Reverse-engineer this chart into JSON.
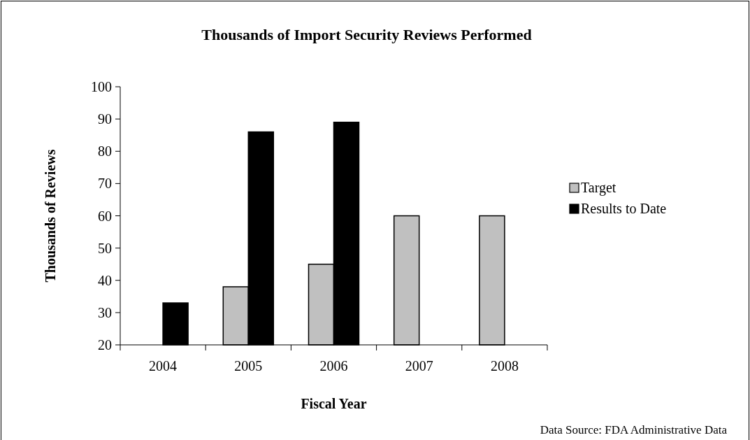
{
  "chart_data": {
    "type": "bar",
    "title": "Thousands of Import Security Reviews Performed",
    "xlabel": "Fiscal Year",
    "ylabel": "Thousands of  Reviews",
    "categories": [
      "2004",
      "2005",
      "2006",
      "2007",
      "2008"
    ],
    "series": [
      {
        "name": "Target",
        "color": "#c0c0c0",
        "values": [
          null,
          38,
          45,
          60,
          60
        ]
      },
      {
        "name": "Results to Date",
        "color": "#000000",
        "values": [
          33,
          86,
          89,
          null,
          null
        ]
      }
    ],
    "ylim": [
      20,
      100
    ],
    "yticks": [
      20,
      30,
      40,
      50,
      60,
      70,
      80,
      90,
      100
    ],
    "grid": false,
    "legend": "right",
    "annotations": [
      "Data Source: FDA Administrative Data"
    ]
  }
}
